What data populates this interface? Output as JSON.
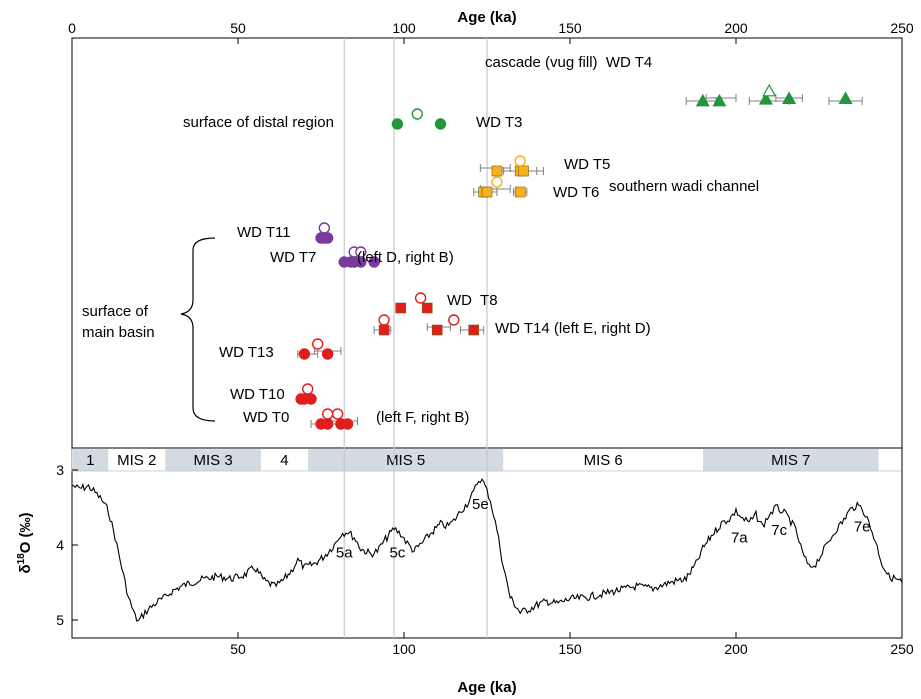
{
  "chart_data": {
    "type": "scatter",
    "title": "",
    "top_axis": {
      "xlabel": "Age (ka)",
      "xlim": [
        0,
        250
      ],
      "ticks": [
        0,
        50,
        100,
        150,
        200,
        250
      ]
    },
    "bottom_axis": {
      "xlabel": "Age (ka)",
      "xlim": [
        0,
        250
      ],
      "ticks": [
        50,
        100,
        150,
        200,
        250
      ]
    },
    "y_axis": {
      "ylabel_main": "δ",
      "ylabel_sup": "18",
      "ylabel_rest": "O (‰)",
      "ylim": [
        3,
        5.2
      ],
      "inverted": true,
      "ticks": [
        3,
        4,
        5
      ]
    },
    "grid_lines_x": [
      82,
      97,
      125
    ],
    "colors": {
      "green": "#22963c",
      "yellow": "#f5b21b",
      "purple": "#7a3a9a",
      "red": "#e01e1e",
      "curve": "#000000",
      "mis_shade": "#d3dae2",
      "grid": "#c8c8c8"
    },
    "series": [
      {
        "label": "WD T4",
        "color": "green",
        "marker": "triangle",
        "closed": [
          [
            190,
            0,
            0
          ],
          [
            195,
            0,
            0
          ],
          [
            209,
            3,
            0
          ],
          [
            216,
            4,
            0
          ],
          [
            233,
            4,
            0
          ]
        ],
        "open": [
          [
            210,
            7
          ]
        ],
        "errors": [
          [
            185,
            194
          ],
          [
            191,
            200
          ],
          [
            204,
            216
          ],
          [
            212,
            220
          ],
          [
            228,
            238
          ]
        ]
      },
      {
        "label": "WD T3",
        "color": "green",
        "marker": "circle",
        "closed": [
          [
            98,
            0
          ],
          [
            111,
            0
          ]
        ],
        "open": [
          [
            104,
            1.5
          ]
        ]
      },
      {
        "label": "WD T5",
        "color": "yellow",
        "marker": "square",
        "closed": [
          [
            128,
            0
          ],
          [
            135,
            0
          ],
          [
            136,
            0
          ]
        ],
        "open": [
          [
            135,
            4
          ]
        ],
        "errors": [
          [
            129,
            142
          ],
          [
            123,
            132
          ],
          [
            130,
            140
          ]
        ]
      },
      {
        "label": "WD T6",
        "color": "yellow",
        "marker": "square",
        "closed": [
          [
            124,
            0
          ],
          [
            125,
            0
          ],
          [
            135,
            0
          ]
        ],
        "open": [
          [
            128,
            3
          ]
        ],
        "errors": [
          [
            121,
            128
          ],
          [
            123,
            132
          ],
          [
            133,
            137
          ]
        ]
      },
      {
        "label": "WD T11",
        "color": "purple",
        "marker": "circle",
        "closed": [
          [
            75,
            0
          ],
          [
            76,
            0
          ],
          [
            77,
            0
          ]
        ],
        "open": [
          [
            76,
            3
          ]
        ]
      },
      {
        "label": "WD T7",
        "color": "purple",
        "marker": "circle",
        "closed": [
          [
            82,
            0
          ],
          [
            84,
            0
          ],
          [
            85,
            0
          ],
          [
            87,
            0
          ],
          [
            91,
            0
          ]
        ],
        "open": [
          [
            85,
            3
          ],
          [
            87,
            3
          ]
        ]
      },
      {
        "label": "WD T8",
        "color": "red",
        "marker": "square",
        "closed": [
          [
            99,
            0
          ],
          [
            107,
            0
          ]
        ],
        "open": [
          [
            105,
            3
          ]
        ]
      },
      {
        "label": "WD T14",
        "color": "red",
        "marker": "square",
        "closed": [
          [
            94,
            0
          ],
          [
            110,
            0
          ],
          [
            121,
            0
          ]
        ],
        "open": [
          [
            94,
            5
          ],
          [
            115,
            5
          ]
        ],
        "errors": [
          [
            91,
            96
          ],
          [
            107,
            114
          ],
          [
            117,
            124
          ]
        ]
      },
      {
        "label": "WD T13",
        "color": "red",
        "marker": "circle",
        "closed": [
          [
            70,
            0
          ],
          [
            77,
            0
          ]
        ],
        "open": [
          [
            74,
            3
          ]
        ],
        "errors": [
          [
            68,
            74
          ],
          [
            73,
            81
          ]
        ]
      },
      {
        "label": "WD T10",
        "color": "red",
        "marker": "circle",
        "closed": [
          [
            69,
            0
          ],
          [
            70,
            0
          ],
          [
            72,
            0
          ]
        ],
        "open": [
          [
            71,
            3
          ]
        ]
      },
      {
        "label": "WD T0",
        "color": "red",
        "marker": "circle",
        "closed": [
          [
            75,
            0
          ],
          [
            77,
            0
          ],
          [
            81,
            0
          ],
          [
            83,
            0
          ]
        ],
        "open": [
          [
            77,
            3
          ],
          [
            80,
            3
          ]
        ],
        "errors": [
          [
            72,
            84
          ],
          [
            78,
            86
          ]
        ]
      }
    ],
    "annotations": [
      {
        "text": "cascade (vug fill)  WD T4"
      },
      {
        "text": "surface of distal region"
      },
      {
        "text": "WD T3"
      },
      {
        "text": "WD T5"
      },
      {
        "text": "southern wadi channel"
      },
      {
        "text": "WD T6"
      },
      {
        "text": "WD T11"
      },
      {
        "text": "WD T7"
      },
      {
        "text": "(left D, right B)"
      },
      {
        "text": "surface of"
      },
      {
        "text": "main basin"
      },
      {
        "text": "WD  T8"
      },
      {
        "text": "WD T14 (left E, right D)"
      },
      {
        "text": "WD T13"
      },
      {
        "text": "WD T10"
      },
      {
        "text": "WD T0"
      },
      {
        "text": "(left F, right B)"
      }
    ],
    "mis_stages": [
      {
        "label": "1",
        "from": 0,
        "to": 11,
        "shaded": true
      },
      {
        "label": "MIS 2",
        "from": 11,
        "to": 28,
        "shaded": false
      },
      {
        "label": "MIS 3",
        "from": 28,
        "to": 57,
        "shaded": true
      },
      {
        "label": "4",
        "from": 57,
        "to": 71,
        "shaded": false
      },
      {
        "label": "MIS 5",
        "from": 71,
        "to": 130,
        "shaded": true
      },
      {
        "label": "MIS 6",
        "from": 130,
        "to": 190,
        "shaded": false
      },
      {
        "label": "MIS 7",
        "from": 190,
        "to": 243,
        "shaded": true
      }
    ],
    "substage_labels": [
      {
        "text": "5a",
        "x": 82,
        "y": 4.1
      },
      {
        "text": "5c",
        "x": 98,
        "y": 4.1
      },
      {
        "text": "5e",
        "x": 123,
        "y": 3.45
      },
      {
        "text": "7a",
        "x": 201,
        "y": 3.9
      },
      {
        "text": "7c",
        "x": 213,
        "y": 3.8
      },
      {
        "text": "7e",
        "x": 238,
        "y": 3.75
      }
    ],
    "d18o_curve": [
      [
        0,
        3.2
      ],
      [
        2,
        3.25
      ],
      [
        5,
        3.22
      ],
      [
        7,
        3.3
      ],
      [
        9,
        3.4
      ],
      [
        11,
        3.55
      ],
      [
        13,
        3.9
      ],
      [
        15,
        4.3
      ],
      [
        17,
        4.7
      ],
      [
        19,
        4.95
      ],
      [
        20,
        5.02
      ],
      [
        22,
        4.9
      ],
      [
        24,
        4.82
      ],
      [
        26,
        4.75
      ],
      [
        28,
        4.7
      ],
      [
        30,
        4.62
      ],
      [
        33,
        4.55
      ],
      [
        36,
        4.5
      ],
      [
        40,
        4.45
      ],
      [
        44,
        4.42
      ],
      [
        48,
        4.45
      ],
      [
        52,
        4.4
      ],
      [
        55,
        4.3
      ],
      [
        58,
        4.48
      ],
      [
        61,
        4.55
      ],
      [
        63,
        4.5
      ],
      [
        66,
        4.35
      ],
      [
        68,
        4.2
      ],
      [
        70,
        4.3
      ],
      [
        73,
        4.25
      ],
      [
        76,
        4.15
      ],
      [
        79,
        4.0
      ],
      [
        81,
        3.85
      ],
      [
        83,
        3.82
      ],
      [
        85,
        3.9
      ],
      [
        87,
        4.05
      ],
      [
        90,
        4.12
      ],
      [
        92,
        4.08
      ],
      [
        94,
        3.95
      ],
      [
        97,
        3.78
      ],
      [
        99,
        3.85
      ],
      [
        101,
        3.98
      ],
      [
        103,
        4.08
      ],
      [
        106,
        3.95
      ],
      [
        108,
        3.85
      ],
      [
        111,
        3.72
      ],
      [
        113,
        3.75
      ],
      [
        115,
        3.68
      ],
      [
        117,
        3.55
      ],
      [
        119,
        3.45
      ],
      [
        121,
        3.3
      ],
      [
        122,
        3.17
      ],
      [
        123,
        3.12
      ],
      [
        124,
        3.17
      ],
      [
        126,
        3.4
      ],
      [
        128,
        3.8
      ],
      [
        130,
        4.3
      ],
      [
        132,
        4.7
      ],
      [
        135,
        4.9
      ],
      [
        138,
        4.85
      ],
      [
        140,
        4.8
      ],
      [
        143,
        4.75
      ],
      [
        146,
        4.78
      ],
      [
        150,
        4.72
      ],
      [
        155,
        4.7
      ],
      [
        160,
        4.65
      ],
      [
        165,
        4.6
      ],
      [
        170,
        4.55
      ],
      [
        175,
        4.58
      ],
      [
        180,
        4.5
      ],
      [
        185,
        4.45
      ],
      [
        188,
        4.25
      ],
      [
        190,
        4.05
      ],
      [
        193,
        3.85
      ],
      [
        196,
        3.7
      ],
      [
        198,
        3.65
      ],
      [
        200,
        3.55
      ],
      [
        202,
        3.65
      ],
      [
        204,
        3.7
      ],
      [
        206,
        3.6
      ],
      [
        208,
        3.75
      ],
      [
        210,
        3.6
      ],
      [
        212,
        3.5
      ],
      [
        214,
        3.55
      ],
      [
        216,
        3.65
      ],
      [
        218,
        3.8
      ],
      [
        220,
        4.1
      ],
      [
        222,
        4.3
      ],
      [
        224,
        4.25
      ],
      [
        226,
        4.1
      ],
      [
        228,
        3.95
      ],
      [
        230,
        3.8
      ],
      [
        232,
        3.7
      ],
      [
        234,
        3.55
      ],
      [
        236,
        3.48
      ],
      [
        238,
        3.5
      ],
      [
        240,
        3.7
      ],
      [
        242,
        3.95
      ],
      [
        244,
        4.25
      ],
      [
        246,
        4.42
      ],
      [
        248,
        4.45
      ],
      [
        250,
        4.5
      ]
    ]
  }
}
